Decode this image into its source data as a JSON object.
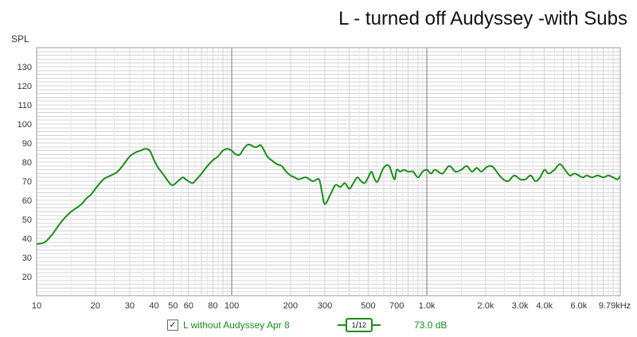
{
  "title": "L - turned off Audyssey -with Subs",
  "colors": {
    "series": "#1a8c1a",
    "grid_minor": "#d4d4d4",
    "grid_major": "#7a7a7a",
    "background": "#ffffff",
    "axis_text": "#333333"
  },
  "legend": {
    "checked": true,
    "check_mark": "✓",
    "series_name": "L without Audyssey Apr 8",
    "smoothing_num": "1",
    "smoothing_den": "12",
    "level": "73.0 dB"
  },
  "chart_data": {
    "type": "line",
    "title": "L - turned off Audyssey -with Subs",
    "ylabel": "SPL",
    "xlabel": "",
    "xscale": "log",
    "xlim": [
      10,
      9790
    ],
    "ylim": [
      10,
      140
    ],
    "grid": true,
    "legend_position": "bottom",
    "x_tick_labels": [
      {
        "value": 10,
        "label": "10"
      },
      {
        "value": 20,
        "label": "20"
      },
      {
        "value": 30,
        "label": "30"
      },
      {
        "value": 40,
        "label": "40"
      },
      {
        "value": 50,
        "label": "50"
      },
      {
        "value": 60,
        "label": "60"
      },
      {
        "value": 80,
        "label": "80"
      },
      {
        "value": 100,
        "label": "100"
      },
      {
        "value": 200,
        "label": "200"
      },
      {
        "value": 300,
        "label": "300"
      },
      {
        "value": 500,
        "label": "500"
      },
      {
        "value": 700,
        "label": "700"
      },
      {
        "value": 1000,
        "label": "1.0k"
      },
      {
        "value": 2000,
        "label": "2.0k"
      },
      {
        "value": 3000,
        "label": "3.0k"
      },
      {
        "value": 4000,
        "label": "4.0k"
      },
      {
        "value": 6000,
        "label": "6.0k"
      },
      {
        "value": 9790,
        "label": "9.79kHz"
      }
    ],
    "y_ticks": [
      20,
      30,
      40,
      50,
      60,
      70,
      80,
      90,
      100,
      110,
      120,
      130
    ],
    "series": [
      {
        "name": "L without Audyssey Apr 8",
        "x": [
          10,
          11,
          12,
          13,
          14,
          15,
          16,
          17,
          18,
          19,
          20,
          22,
          24,
          26,
          28,
          30,
          32,
          34,
          36,
          38,
          40,
          42,
          45,
          48,
          50,
          53,
          56,
          58,
          60,
          63,
          66,
          70,
          75,
          80,
          85,
          90,
          95,
          100,
          105,
          110,
          115,
          120,
          125,
          130,
          135,
          140,
          145,
          150,
          155,
          160,
          170,
          180,
          190,
          200,
          210,
          220,
          240,
          260,
          280,
          290,
          300,
          320,
          340,
          360,
          380,
          400,
          420,
          440,
          460,
          480,
          500,
          520,
          540,
          560,
          600,
          640,
          680,
          700,
          730,
          760,
          800,
          850,
          900,
          950,
          1000,
          1050,
          1100,
          1200,
          1300,
          1400,
          1500,
          1600,
          1700,
          1800,
          1900,
          2000,
          2100,
          2200,
          2400,
          2600,
          2800,
          3000,
          3200,
          3400,
          3600,
          3800,
          4000,
          4200,
          4500,
          4800,
          5100,
          5400,
          5700,
          6000,
          6300,
          6600,
          7000,
          7500,
          8000,
          8500,
          9000,
          9500,
          9790
        ],
        "values": [
          37,
          38,
          42,
          47,
          51,
          54,
          56,
          58,
          61,
          63,
          66,
          71,
          73,
          75,
          79,
          83,
          85,
          86,
          87,
          86,
          81,
          77,
          73,
          69,
          68,
          70,
          72,
          71,
          70,
          69,
          71,
          74,
          78,
          81,
          83,
          86,
          87,
          86,
          84,
          84,
          87,
          89,
          89,
          88,
          88,
          89,
          87,
          84,
          82,
          81,
          79,
          78,
          75,
          73,
          72,
          71,
          72,
          70,
          71,
          64,
          58,
          63,
          68,
          67,
          69,
          66,
          69,
          72,
          70,
          69,
          72,
          75,
          71,
          70,
          77,
          78,
          71,
          76,
          75,
          76,
          75,
          75,
          72,
          75,
          76,
          74,
          76,
          74,
          78,
          75,
          76,
          78,
          75,
          77,
          75,
          77,
          78,
          77,
          72,
          70,
          73,
          71,
          71,
          73,
          70,
          72,
          76,
          74,
          76,
          79,
          76,
          73,
          74,
          73,
          72,
          73,
          72,
          73,
          72,
          73,
          72,
          71,
          73
        ]
      }
    ]
  }
}
